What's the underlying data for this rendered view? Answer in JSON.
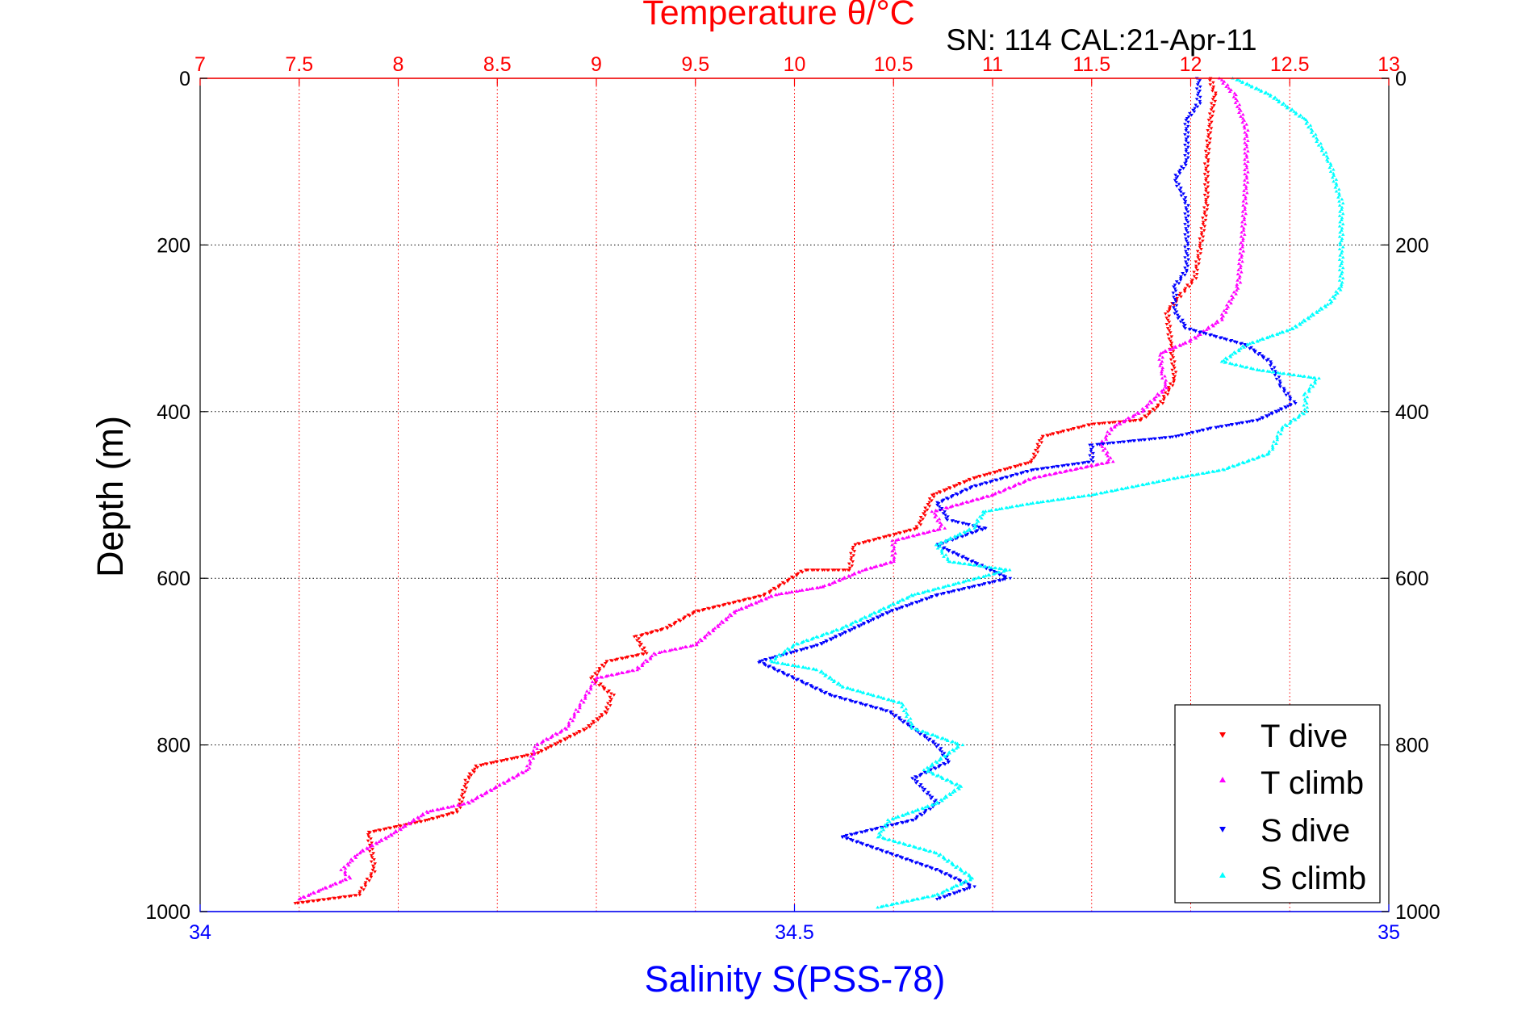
{
  "colors": {
    "temperature_axis": "#ff0000",
    "salinity_axis": "#0000ff",
    "t_dive": "#ff0000",
    "t_climb": "#ff00ff",
    "s_dive": "#0000ff",
    "s_climb": "#00ffff",
    "grid": "#000000"
  },
  "chart_data": {
    "type": "scatter",
    "title": "SN: 114  CAL:21-Apr-11",
    "top_axis": {
      "label": "Temperature θ/°C",
      "range": [
        7,
        13
      ],
      "ticks": [
        7,
        7.5,
        8,
        8.5,
        9,
        9.5,
        10,
        10.5,
        11,
        11.5,
        12,
        12.5,
        13
      ],
      "tick_labels": [
        "7",
        "7.5",
        "8",
        "8.5",
        "9",
        "9.5",
        "10",
        "10.5",
        "11",
        "11.5",
        "12",
        "12.5",
        "13"
      ],
      "vertical_grid": true
    },
    "bottom_axis": {
      "label": "Salinity S(PSS-78)",
      "range": [
        34,
        35
      ],
      "ticks": [
        34,
        34.5,
        35
      ],
      "tick_labels": [
        "34",
        "34.5",
        "35"
      ]
    },
    "y_axis": {
      "label": "Depth (m)",
      "range": [
        0,
        1000
      ],
      "reversed": true,
      "ticks": [
        0,
        200,
        400,
        600,
        800,
        1000
      ],
      "tick_labels": [
        "0",
        "200",
        "400",
        "600",
        "800",
        "1000"
      ],
      "horizontal_grid": true
    },
    "legend_position": "bottom-right",
    "series": [
      {
        "name": "T dive",
        "axis": "temperature",
        "marker": "triangle-down",
        "points": [
          [
            12.1,
            0
          ],
          [
            12.12,
            20
          ],
          [
            12.1,
            50
          ],
          [
            12.08,
            100
          ],
          [
            12.08,
            150
          ],
          [
            12.05,
            200
          ],
          [
            12.02,
            240
          ],
          [
            11.95,
            260
          ],
          [
            11.88,
            280
          ],
          [
            11.9,
            320
          ],
          [
            11.92,
            360
          ],
          [
            11.85,
            390
          ],
          [
            11.75,
            410
          ],
          [
            11.5,
            415
          ],
          [
            11.25,
            430
          ],
          [
            11.2,
            460
          ],
          [
            10.9,
            480
          ],
          [
            10.7,
            500
          ],
          [
            10.62,
            540
          ],
          [
            10.3,
            560
          ],
          [
            10.28,
            590
          ],
          [
            10.05,
            590
          ],
          [
            9.85,
            620
          ],
          [
            9.5,
            640
          ],
          [
            9.35,
            660
          ],
          [
            9.2,
            670
          ],
          [
            9.25,
            690
          ],
          [
            9.05,
            700
          ],
          [
            8.98,
            720
          ],
          [
            9.08,
            740
          ],
          [
            9.05,
            760
          ],
          [
            8.95,
            780
          ],
          [
            8.7,
            810
          ],
          [
            8.4,
            825
          ],
          [
            8.35,
            840
          ],
          [
            8.3,
            880
          ],
          [
            8.15,
            890
          ],
          [
            7.85,
            905
          ],
          [
            7.88,
            950
          ],
          [
            7.8,
            980
          ],
          [
            7.48,
            990
          ]
        ]
      },
      {
        "name": "T climb",
        "axis": "temperature",
        "marker": "triangle-up",
        "points": [
          [
            12.15,
            0
          ],
          [
            12.22,
            20
          ],
          [
            12.28,
            60
          ],
          [
            12.28,
            120
          ],
          [
            12.26,
            200
          ],
          [
            12.24,
            250
          ],
          [
            12.15,
            290
          ],
          [
            12.0,
            315
          ],
          [
            11.85,
            330
          ],
          [
            11.85,
            350
          ],
          [
            11.88,
            370
          ],
          [
            11.75,
            400
          ],
          [
            11.6,
            420
          ],
          [
            11.55,
            440
          ],
          [
            11.6,
            460
          ],
          [
            11.4,
            470
          ],
          [
            11.2,
            480
          ],
          [
            11.0,
            500
          ],
          [
            10.7,
            520
          ],
          [
            10.75,
            540
          ],
          [
            10.5,
            555
          ],
          [
            10.5,
            580
          ],
          [
            10.35,
            590
          ],
          [
            10.15,
            610
          ],
          [
            9.9,
            620
          ],
          [
            9.7,
            640
          ],
          [
            9.6,
            660
          ],
          [
            9.5,
            680
          ],
          [
            9.3,
            690
          ],
          [
            9.2,
            710
          ],
          [
            9.0,
            720
          ],
          [
            8.95,
            740
          ],
          [
            8.9,
            760
          ],
          [
            8.85,
            780
          ],
          [
            8.7,
            800
          ],
          [
            8.65,
            830
          ],
          [
            8.5,
            850
          ],
          [
            8.35,
            870
          ],
          [
            8.15,
            880
          ],
          [
            7.95,
            910
          ],
          [
            7.8,
            930
          ],
          [
            7.72,
            950
          ],
          [
            7.75,
            960
          ],
          [
            7.6,
            975
          ],
          [
            7.5,
            985
          ]
        ]
      },
      {
        "name": "S dive",
        "axis": "salinity",
        "marker": "triangle-down",
        "points": [
          [
            34.84,
            0
          ],
          [
            34.84,
            30
          ],
          [
            34.83,
            50
          ],
          [
            34.83,
            100
          ],
          [
            34.82,
            120
          ],
          [
            34.83,
            150
          ],
          [
            34.83,
            200
          ],
          [
            34.83,
            230
          ],
          [
            34.82,
            250
          ],
          [
            34.82,
            280
          ],
          [
            34.83,
            300
          ],
          [
            34.88,
            320
          ],
          [
            34.9,
            340
          ],
          [
            34.91,
            370
          ],
          [
            34.92,
            390
          ],
          [
            34.89,
            410
          ],
          [
            34.85,
            420
          ],
          [
            34.82,
            430
          ],
          [
            34.75,
            440
          ],
          [
            34.75,
            460
          ],
          [
            34.7,
            470
          ],
          [
            34.65,
            490
          ],
          [
            34.62,
            510
          ],
          [
            34.63,
            530
          ],
          [
            34.66,
            540
          ],
          [
            34.62,
            560
          ],
          [
            34.65,
            580
          ],
          [
            34.68,
            600
          ],
          [
            34.62,
            620
          ],
          [
            34.58,
            640
          ],
          [
            34.55,
            660
          ],
          [
            34.52,
            680
          ],
          [
            34.47,
            700
          ],
          [
            34.5,
            720
          ],
          [
            34.53,
            740
          ],
          [
            34.58,
            760
          ],
          [
            34.6,
            780
          ],
          [
            34.62,
            800
          ],
          [
            34.63,
            820
          ],
          [
            34.6,
            840
          ],
          [
            34.62,
            870
          ],
          [
            34.6,
            890
          ],
          [
            34.54,
            910
          ],
          [
            34.58,
            930
          ],
          [
            34.62,
            950
          ],
          [
            34.65,
            970
          ],
          [
            34.62,
            985
          ]
        ]
      },
      {
        "name": "S climb",
        "axis": "salinity",
        "marker": "triangle-up",
        "points": [
          [
            34.87,
            0
          ],
          [
            34.9,
            20
          ],
          [
            34.93,
            50
          ],
          [
            34.95,
            100
          ],
          [
            34.96,
            150
          ],
          [
            34.96,
            200
          ],
          [
            34.96,
            250
          ],
          [
            34.95,
            270
          ],
          [
            34.92,
            300
          ],
          [
            34.88,
            320
          ],
          [
            34.86,
            340
          ],
          [
            34.89,
            350
          ],
          [
            34.94,
            360
          ],
          [
            34.93,
            380
          ],
          [
            34.93,
            400
          ],
          [
            34.91,
            420
          ],
          [
            34.9,
            450
          ],
          [
            34.86,
            470
          ],
          [
            34.82,
            480
          ],
          [
            34.75,
            500
          ],
          [
            34.7,
            510
          ],
          [
            34.66,
            520
          ],
          [
            34.65,
            540
          ],
          [
            34.62,
            560
          ],
          [
            34.63,
            580
          ],
          [
            34.68,
            590
          ],
          [
            34.6,
            620
          ],
          [
            34.57,
            640
          ],
          [
            34.54,
            660
          ],
          [
            34.5,
            680
          ],
          [
            34.48,
            700
          ],
          [
            34.52,
            710
          ],
          [
            34.54,
            730
          ],
          [
            34.59,
            750
          ],
          [
            34.6,
            780
          ],
          [
            34.64,
            800
          ],
          [
            34.61,
            830
          ],
          [
            34.64,
            850
          ],
          [
            34.62,
            870
          ],
          [
            34.58,
            890
          ],
          [
            34.57,
            910
          ],
          [
            34.62,
            930
          ],
          [
            34.65,
            960
          ],
          [
            34.62,
            980
          ],
          [
            34.57,
            995
          ]
        ]
      }
    ]
  }
}
